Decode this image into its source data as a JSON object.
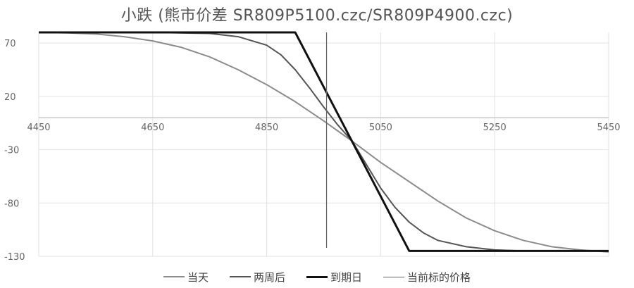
{
  "chart_data": {
    "type": "line",
    "title": "小跌 (熊市价差 SR809P5100.czc/SR809P4900.czc)",
    "xlabel": "",
    "ylabel": "",
    "xlim": [
      4450,
      5450
    ],
    "ylim": [
      -130,
      80
    ],
    "x_ticks": [
      4450,
      4650,
      4850,
      5050,
      5250,
      5450
    ],
    "y_ticks": [
      70,
      20,
      -30,
      -80,
      -130
    ],
    "grid": true,
    "legend_position": "bottom",
    "current_price": 4955,
    "series": [
      {
        "name": "当天",
        "color": "#8c8c8c",
        "width": 2,
        "x": [
          4450,
          4500,
          4550,
          4600,
          4650,
          4700,
          4750,
          4800,
          4850,
          4900,
          4950,
          5000,
          5050,
          5100,
          5150,
          5200,
          5250,
          5300,
          5350,
          5400,
          5450
        ],
        "y": [
          80,
          79.5,
          78.5,
          76,
          72,
          66,
          57,
          45,
          31,
          15,
          -3,
          -22,
          -42,
          -60,
          -78,
          -94,
          -106,
          -115,
          -121,
          -124,
          -126
        ]
      },
      {
        "name": "两周后",
        "color": "#555555",
        "width": 2,
        "x": [
          4450,
          4550,
          4650,
          4750,
          4800,
          4850,
          4875,
          4900,
          4925,
          4950,
          4975,
          5000,
          5025,
          5050,
          5075,
          5100,
          5125,
          5150,
          5200,
          5250,
          5300,
          5450
        ],
        "y": [
          80,
          80,
          80,
          79,
          76,
          68,
          59,
          45,
          28,
          10,
          -7,
          -22,
          -44,
          -66,
          -84,
          -98,
          -108,
          -115,
          -121,
          -124,
          -125,
          -125
        ]
      },
      {
        "name": "到期日",
        "color": "#111111",
        "width": 3,
        "x": [
          4450,
          4900,
          5100,
          5450
        ],
        "y": [
          80,
          80,
          -125,
          -125
        ]
      }
    ],
    "vline": {
      "name": "当前标的价格",
      "color": "#666666",
      "width": 1.2
    }
  }
}
